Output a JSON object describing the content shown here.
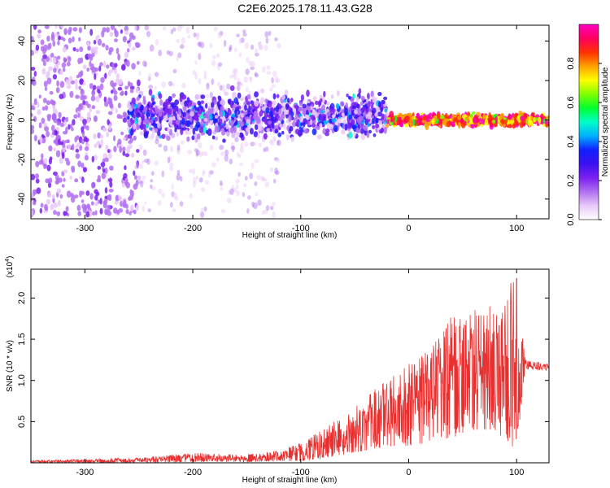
{
  "title": "C2E6.2025.178.11.43.G28",
  "colors": {
    "snr_line": "#e83030",
    "frame": "#000000",
    "colormap": [
      "#ffffff",
      "#e9c8f8",
      "#b070f0",
      "#7a20f0",
      "#3c10f0",
      "#1020ff",
      "#00b0ff",
      "#00ffc8",
      "#00ff30",
      "#80ff00",
      "#ffff00",
      "#ffa000",
      "#ff3000",
      "#ff0060",
      "#ff00c0"
    ]
  },
  "chart_data": [
    {
      "type": "heatmap",
      "xlabel": "Height of straight line (km)",
      "ylabel": "Frequency (Hz)",
      "xlim": [
        -350,
        130
      ],
      "ylim": [
        -50,
        48
      ],
      "x_ticks": [
        -300,
        -200,
        -100,
        0,
        100
      ],
      "y_ticks": [
        -40,
        -20,
        0,
        20,
        40
      ],
      "colorbar": {
        "label": "Normalized spectral amplitude",
        "range": [
          0,
          1
        ],
        "ticks": [
          0.0,
          0.2,
          0.4,
          0.6,
          0.8
        ]
      },
      "regions": [
        {
          "x_range": [
            -350,
            -250
          ],
          "freq_spread": 48,
          "amplitude": 0.08
        },
        {
          "x_range": [
            -250,
            -120
          ],
          "freq_spread": 48,
          "amplitude": 0.04
        },
        {
          "x_range": [
            -260,
            -20
          ],
          "freq_center": 2,
          "freq_spread": 12,
          "amplitude": 0.2
        },
        {
          "x_range": [
            -20,
            130
          ],
          "freq_center": 0,
          "freq_spread": 3,
          "amplitude": 0.85
        }
      ]
    },
    {
      "type": "line",
      "xlabel": "Height of straight line (km)",
      "ylabel": "SNR (10 * v/v)",
      "y_multiplier": "(x10",
      "y_multiplier_exp": "4",
      "y_multiplier_close": ")",
      "xlim": [
        -350,
        130
      ],
      "ylim": [
        0,
        2.35
      ],
      "x_ticks": [
        -300,
        -200,
        -100,
        0,
        100
      ],
      "y_ticks": [
        0.5,
        1.0,
        1.5,
        2.0
      ],
      "y_tick_labels": [
        "0.5",
        "1.0",
        "1.5",
        "2.0"
      ],
      "envelope": {
        "x": [
          -350,
          -250,
          -200,
          -150,
          -120,
          -100,
          -80,
          -60,
          -40,
          -20,
          0,
          20,
          40,
          60,
          80,
          100,
          108,
          130
        ],
        "upper": [
          0.03,
          0.06,
          0.12,
          0.1,
          0.15,
          0.25,
          0.4,
          0.6,
          0.8,
          1.05,
          1.2,
          1.4,
          1.8,
          1.9,
          1.9,
          2.3,
          1.25,
          1.2
        ],
        "lower": [
          0.0,
          0.0,
          0.01,
          0.01,
          0.02,
          0.02,
          0.05,
          0.1,
          0.15,
          0.2,
          0.2,
          0.25,
          0.3,
          0.4,
          0.4,
          0.1,
          1.13,
          1.12
        ]
      }
    }
  ]
}
